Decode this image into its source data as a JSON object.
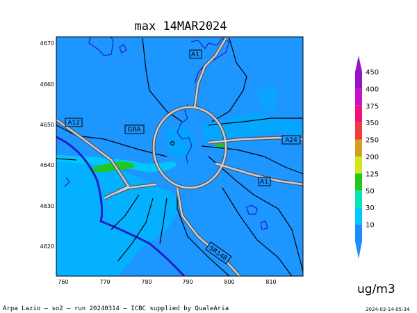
{
  "title": "max 14MAR2024",
  "units": "ug/m3",
  "credit": "Arpa Lazio — so2 — run 20240314 — ICBC supplied by QualeAria",
  "timestamp": "2024-03-14-05:34",
  "x_ticks": [
    "760",
    "770",
    "780",
    "790",
    "800",
    "810"
  ],
  "y_ticks": [
    "4670",
    "4660",
    "4650",
    "4640",
    "4630",
    "4620"
  ],
  "roads": {
    "a1_north": "A1",
    "a12": "A12",
    "gra": "GRA",
    "a24": "A24",
    "a1_south": "A1",
    "sr148": "SR148"
  },
  "colorbar": {
    "labels": [
      "10",
      "30",
      "50",
      "125",
      "200",
      "250",
      "350",
      "375",
      "400",
      "450"
    ],
    "colors": [
      "#1e8cff",
      "#00c8ff",
      "#00e6b4",
      "#1ec81e",
      "#d2e61e",
      "#d2a01e",
      "#f03c3c",
      "#f01478",
      "#c814c8",
      "#9614c8"
    ]
  },
  "palette": {
    "background_field": "#1e96ff",
    "light_field": "#00b4ff",
    "green_patch": "#1ec81e",
    "coastline": "#1e1ec8"
  }
}
